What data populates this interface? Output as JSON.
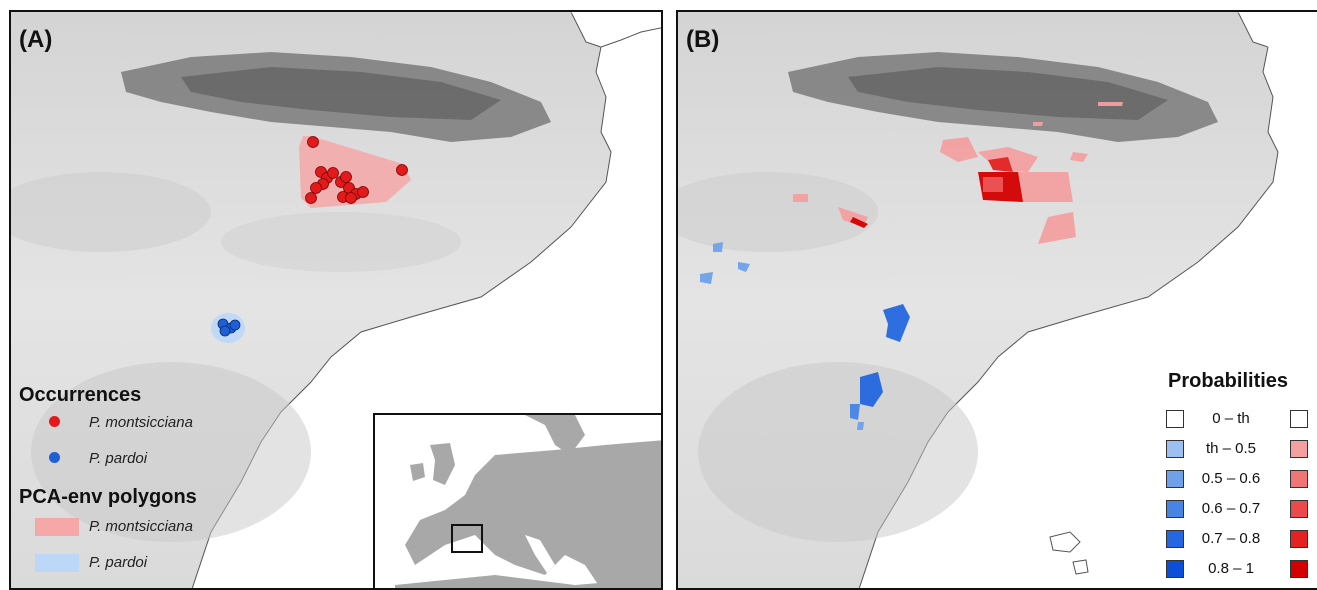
{
  "panel_a": {
    "label": "(A)",
    "legend": {
      "occurrences_title": "Occurrences",
      "occurrence_items": [
        {
          "label": "P. montsicciana",
          "color": "#e31a1c"
        },
        {
          "label": "P. pardoi",
          "color": "#1f5fd6"
        }
      ],
      "polygons_title": "PCA-env polygons",
      "polygon_items": [
        {
          "label": "P. montsicciana",
          "color": "#f6a7a7"
        },
        {
          "label": "P. pardoi",
          "color": "#bcd7f7"
        }
      ]
    }
  },
  "panel_b": {
    "label": "(B)",
    "legend": {
      "title": "Probabilities",
      "classes": [
        "0 – th",
        "th – 0.5",
        "0.5 – 0.6",
        "0.6 – 0.7",
        "0.7 – 0.8",
        "0.8 – 1"
      ],
      "blue_colors": [
        "#ffffff",
        "#9cc0f2",
        "#6fa1ea",
        "#4784e6",
        "#2467e0",
        "#0b4fd8"
      ],
      "red_colors": [
        "#ffffff",
        "#f4a0a0",
        "#f07575",
        "#ec4a4a",
        "#e42222",
        "#d40000"
      ]
    }
  },
  "colors": {
    "sea": "#ffffff",
    "land_low": "#ececec",
    "land_mid": "#c9c9c9",
    "mountains": "#6e6e6e",
    "inset_land": "#a8a8a8"
  }
}
